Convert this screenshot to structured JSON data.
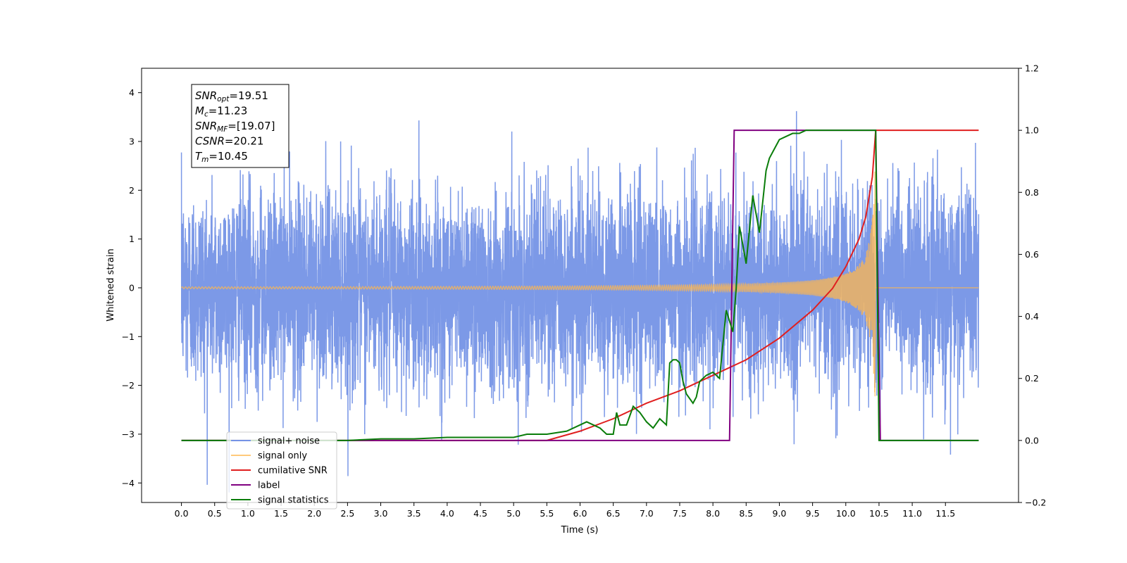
{
  "chart_data": {
    "type": "line",
    "title": "",
    "xlabel": "Time (s)",
    "ylabel": "Whitened strain",
    "ylabel_right": "",
    "xlim": [
      -0.6,
      12.6
    ],
    "ylim": [
      -4.4,
      4.5
    ],
    "ylim_right": [
      -0.2,
      1.2
    ],
    "grid": false,
    "legend_position": "lower-left",
    "x_ticks": [
      "0.0",
      "0.5",
      "1.0",
      "1.5",
      "2.0",
      "2.5",
      "3.0",
      "3.5",
      "4.0",
      "4.5",
      "5.0",
      "5.5",
      "6.0",
      "6.5",
      "7.0",
      "7.5",
      "8.0",
      "8.5",
      "9.0",
      "9.5",
      "10.0",
      "10.5",
      "11.0",
      "11.5"
    ],
    "y_ticks": [
      "4",
      "3",
      "2",
      "1",
      "0",
      "−1",
      "−2",
      "−3",
      "−4"
    ],
    "y_ticks_right": [
      "1.2",
      "1.0",
      "0.8",
      "0.6",
      "0.4",
      "0.2",
      "0.0",
      "−0.2"
    ],
    "annotation_lines": [
      {
        "base": "SNR",
        "sub": "opt",
        "value": "=19.51"
      },
      {
        "base": "M",
        "sub": "c",
        "value": "=11.23"
      },
      {
        "base": "SNR",
        "sub": "MF",
        "value": "=[19.07]"
      },
      {
        "base": "CSNR",
        "sub": "",
        "value": "=20.21"
      },
      {
        "base": "T",
        "sub": "m",
        "value": "=10.45"
      }
    ],
    "series": [
      {
        "name": "signal+ noise",
        "color": "#7593e6",
        "axis": "left",
        "description_values": {
          "x_range": [
            0.0,
            12.0
          ],
          "noise_sigma": 1.0
        }
      },
      {
        "name": "signal only",
        "color": "#ffb74d",
        "axis": "left",
        "chirp_end_time": 10.45,
        "peak_amplitude": 3.2
      },
      {
        "name": "cumilative SNR",
        "color": "#e01f1f",
        "axis": "right",
        "x": [
          0.0,
          5.5,
          6.0,
          6.5,
          7.0,
          7.5,
          8.0,
          8.5,
          9.0,
          9.5,
          9.8,
          10.0,
          10.2,
          10.3,
          10.4,
          10.45,
          12.0
        ],
        "y": [
          0.0,
          0.0,
          0.03,
          0.07,
          0.12,
          0.16,
          0.21,
          0.26,
          0.33,
          0.42,
          0.49,
          0.56,
          0.65,
          0.72,
          0.85,
          1.0,
          1.0
        ]
      },
      {
        "name": "label",
        "color": "#800080",
        "axis": "right",
        "x": [
          0.0,
          8.25,
          8.32,
          10.45,
          10.52,
          12.0
        ],
        "y": [
          0.0,
          0.0,
          1.0,
          1.0,
          0.0,
          0.0
        ]
      },
      {
        "name": "signal statistics",
        "color": "#0a7d0a",
        "axis": "right",
        "x": [
          0.0,
          2.5,
          3.0,
          3.5,
          4.0,
          4.2,
          4.5,
          5.0,
          5.2,
          5.5,
          5.8,
          6.0,
          6.1,
          6.2,
          6.3,
          6.4,
          6.5,
          6.55,
          6.6,
          6.7,
          6.8,
          6.9,
          7.0,
          7.1,
          7.2,
          7.3,
          7.35,
          7.4,
          7.45,
          7.5,
          7.55,
          7.6,
          7.7,
          7.75,
          7.8,
          7.9,
          8.0,
          8.1,
          8.2,
          8.3,
          8.35,
          8.4,
          8.45,
          8.5,
          8.6,
          8.7,
          8.8,
          8.85,
          8.9,
          9.0,
          9.1,
          9.2,
          9.3,
          9.4,
          9.5,
          9.6,
          9.8,
          10.0,
          10.2,
          10.3,
          10.38,
          10.45,
          10.5,
          10.6,
          12.0
        ],
        "y": [
          0.0,
          0.0,
          0.005,
          0.005,
          0.01,
          0.01,
          0.01,
          0.01,
          0.02,
          0.02,
          0.03,
          0.05,
          0.06,
          0.05,
          0.04,
          0.02,
          0.02,
          0.09,
          0.05,
          0.05,
          0.11,
          0.09,
          0.06,
          0.04,
          0.07,
          0.05,
          0.25,
          0.26,
          0.26,
          0.25,
          0.19,
          0.15,
          0.12,
          0.14,
          0.19,
          0.21,
          0.22,
          0.2,
          0.42,
          0.35,
          0.49,
          0.69,
          0.63,
          0.57,
          0.79,
          0.67,
          0.87,
          0.91,
          0.93,
          0.97,
          0.98,
          0.99,
          0.99,
          1.0,
          1.0,
          1.0,
          1.0,
          1.0,
          1.0,
          1.0,
          1.0,
          1.0,
          0.0,
          0.0,
          0.0
        ]
      }
    ]
  }
}
